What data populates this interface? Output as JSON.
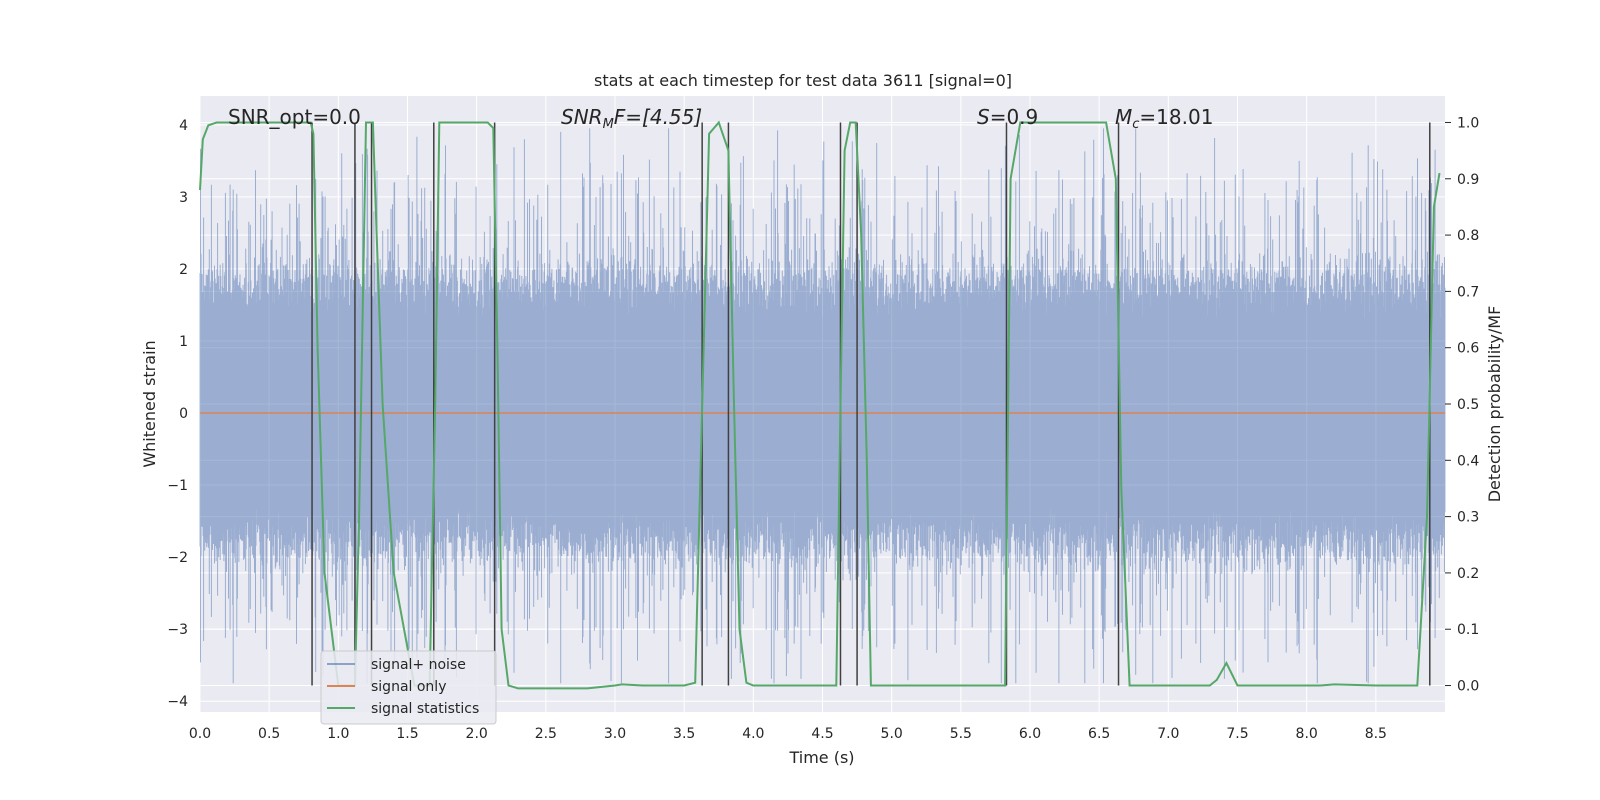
{
  "chart_data": {
    "type": "line",
    "title": "stats at each timestep for test data 3611 [signal=0]",
    "xlabel": "Time (s)",
    "ylabel_left": "Whitened strain",
    "ylabel_right": "Detection probability/MF",
    "xlim": [
      0.0,
      9.0
    ],
    "ylim_left": [
      -4.15,
      4.4
    ],
    "ylim_right": [
      -0.047,
      1.047
    ],
    "x_ticks": [
      "0.0",
      "0.5",
      "1.0",
      "1.5",
      "2.0",
      "2.5",
      "3.0",
      "3.5",
      "4.0",
      "4.5",
      "5.0",
      "5.5",
      "6.0",
      "6.5",
      "7.0",
      "7.5",
      "8.0",
      "8.5"
    ],
    "y_ticks_left": [
      "4",
      "3",
      "2",
      "1",
      "0",
      "−1",
      "−2",
      "−3",
      "−4"
    ],
    "y_ticks_right": [
      "1.0",
      "0.9",
      "0.8",
      "0.7",
      "0.6",
      "0.5",
      "0.4",
      "0.3",
      "0.2",
      "0.1",
      "0.0"
    ],
    "grid": true,
    "legend_position": "lower-left",
    "annotations": {
      "snr_opt": "SNR_opt=0.0",
      "snr_mf_main": "SNR",
      "snr_mf_sub": "M",
      "snr_mf_rest": "F=[4.55]",
      "s_main": "S",
      "s_rest": "=0.9",
      "mc_main": "M",
      "mc_sub": "c",
      "mc_rest": "=18.01"
    },
    "series": [
      {
        "name": "signal+ noise",
        "color": "#4c72b0",
        "description_values": {
          "typical_range": [
            -2.0,
            2.0
          ],
          "peak_range": [
            -3.75,
            3.95
          ]
        }
      },
      {
        "name": "signal only",
        "color": "#dd8452",
        "x": [
          0.0,
          9.0
        ],
        "y": [
          0.0,
          0.0
        ]
      },
      {
        "name": "signal statistics",
        "color": "#55a868",
        "axis": "right",
        "x": [
          0.0,
          0.02,
          0.06,
          0.12,
          0.3,
          0.6,
          0.8,
          0.82,
          0.85,
          0.9,
          1.0,
          1.1,
          1.12,
          1.15,
          1.2,
          1.25,
          1.27,
          1.32,
          1.4,
          1.55,
          1.66,
          1.7,
          1.73,
          1.8,
          1.9,
          2.0,
          2.08,
          2.12,
          2.15,
          2.18,
          2.23,
          2.3,
          2.5,
          2.8,
          3.0,
          3.05,
          3.2,
          3.5,
          3.58,
          3.62,
          3.68,
          3.75,
          3.82,
          3.86,
          3.9,
          3.95,
          4.0,
          4.3,
          4.6,
          4.63,
          4.66,
          4.7,
          4.74,
          4.78,
          4.82,
          4.85,
          4.9,
          5.2,
          5.5,
          5.82,
          5.86,
          5.93,
          6.0,
          6.3,
          6.55,
          6.62,
          6.66,
          6.72,
          7.0,
          7.3,
          7.35,
          7.42,
          7.5,
          7.8,
          8.1,
          8.2,
          8.5,
          8.8,
          8.87,
          8.92,
          8.96
        ],
        "y": [
          0.88,
          0.97,
          0.995,
          1.0,
          1.0,
          1.0,
          1.0,
          0.98,
          0.6,
          0.2,
          0.0,
          0.0,
          0.0,
          0.3,
          1.0,
          1.0,
          0.85,
          0.5,
          0.2,
          0.0,
          0.0,
          0.5,
          1.0,
          1.0,
          1.0,
          1.0,
          1.0,
          0.99,
          0.6,
          0.1,
          0.0,
          -0.005,
          -0.005,
          -0.005,
          0.0,
          0.002,
          0.0,
          0.0,
          0.005,
          0.4,
          0.98,
          1.0,
          0.95,
          0.5,
          0.1,
          0.005,
          0.0,
          0.0,
          0.0,
          0.5,
          0.95,
          1.0,
          1.0,
          0.8,
          0.4,
          0.0,
          0.0,
          0.0,
          0.0,
          0.0,
          0.9,
          1.0,
          1.0,
          1.0,
          1.0,
          0.9,
          0.35,
          0.0,
          0.0,
          0.0,
          0.01,
          0.04,
          0.0,
          0.0,
          0.0,
          0.002,
          0.0,
          0.0,
          0.3,
          0.85,
          0.91
        ]
      }
    ],
    "vertical_lines_x": [
      0.81,
      1.12,
      1.24,
      1.69,
      2.13,
      3.63,
      3.82,
      4.63,
      4.75,
      5.83,
      6.64,
      8.89
    ],
    "vertical_line_color": "#404040"
  }
}
